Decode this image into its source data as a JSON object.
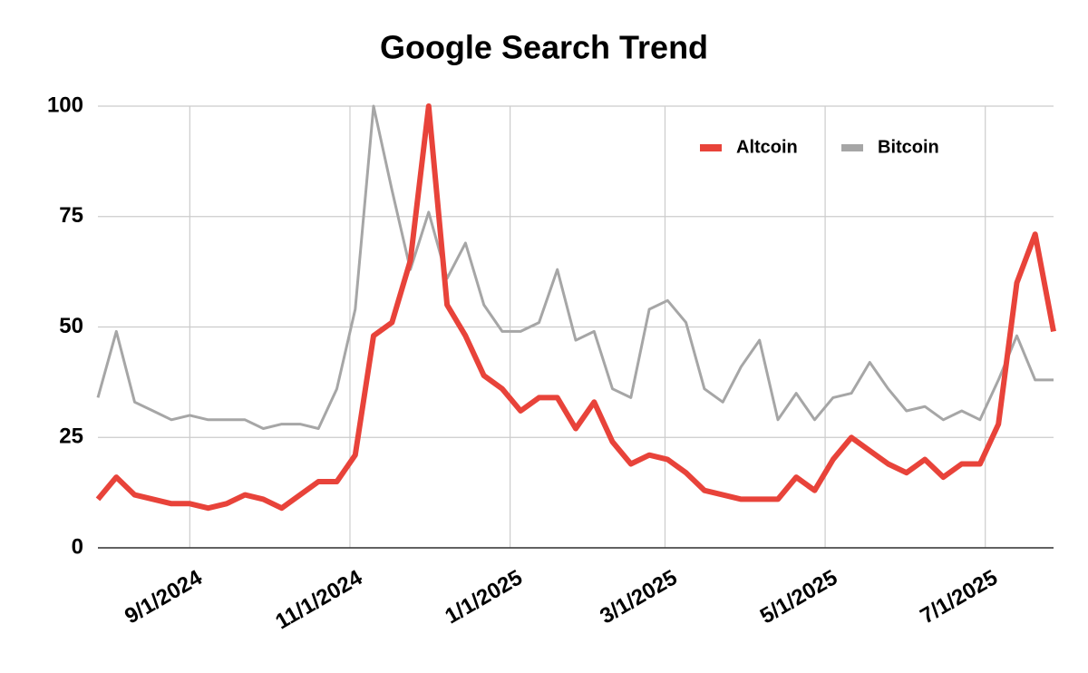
{
  "chart_data": {
    "type": "line",
    "title": "Google Search Trend",
    "x": [
      "2024-07-28",
      "2024-08-04",
      "2024-08-11",
      "2024-08-18",
      "2024-08-25",
      "2024-09-01",
      "2024-09-08",
      "2024-09-15",
      "2024-09-22",
      "2024-09-29",
      "2024-10-06",
      "2024-10-13",
      "2024-10-20",
      "2024-10-27",
      "2024-11-03",
      "2024-11-10",
      "2024-11-17",
      "2024-11-24",
      "2024-12-01",
      "2024-12-08",
      "2024-12-15",
      "2024-12-22",
      "2024-12-29",
      "2025-01-05",
      "2025-01-12",
      "2025-01-19",
      "2025-01-26",
      "2025-02-02",
      "2025-02-09",
      "2025-02-16",
      "2025-02-23",
      "2025-03-02",
      "2025-03-09",
      "2025-03-16",
      "2025-03-23",
      "2025-03-30",
      "2025-04-06",
      "2025-04-13",
      "2025-04-20",
      "2025-04-27",
      "2025-05-04",
      "2025-05-11",
      "2025-05-18",
      "2025-05-25",
      "2025-06-01",
      "2025-06-08",
      "2025-06-15",
      "2025-06-22",
      "2025-06-29",
      "2025-07-06",
      "2025-07-13",
      "2025-07-20",
      "2025-07-27"
    ],
    "series": [
      {
        "name": "Altcoin",
        "color": "#e8433a",
        "values": [
          11,
          16,
          12,
          11,
          10,
          10,
          9,
          10,
          12,
          11,
          9,
          12,
          15,
          15,
          21,
          48,
          51,
          65,
          100,
          55,
          48,
          39,
          36,
          31,
          34,
          34,
          27,
          33,
          24,
          19,
          21,
          20,
          17,
          13,
          12,
          11,
          11,
          11,
          16,
          13,
          20,
          25,
          22,
          19,
          17,
          20,
          16,
          19,
          19,
          28,
          60,
          71,
          49
        ]
      },
      {
        "name": "Bitcoin",
        "color": "#a6a6a6",
        "values": [
          34,
          49,
          33,
          31,
          29,
          30,
          29,
          29,
          29,
          27,
          28,
          28,
          27,
          36,
          54,
          100,
          81,
          63,
          76,
          61,
          69,
          55,
          49,
          49,
          51,
          63,
          47,
          49,
          36,
          34,
          54,
          56,
          51,
          36,
          33,
          41,
          47,
          29,
          35,
          29,
          34,
          35,
          42,
          36,
          31,
          32,
          29,
          31,
          29,
          38,
          48,
          38,
          38
        ]
      }
    ],
    "xlim": [
      "2024-07-28",
      "2025-07-27"
    ],
    "xticks": [
      {
        "value": "2024-09-01",
        "label": "9/1/2024"
      },
      {
        "value": "2024-11-01",
        "label": "11/1/2024"
      },
      {
        "value": "2025-01-01",
        "label": "1/1/2025"
      },
      {
        "value": "2025-03-01",
        "label": "3/1/2025"
      },
      {
        "value": "2025-05-01",
        "label": "5/1/2025"
      },
      {
        "value": "2025-07-01",
        "label": "7/1/2025"
      }
    ],
    "ylim": [
      0,
      100
    ],
    "yticks": [
      0,
      25,
      50,
      75,
      100
    ],
    "grid": true,
    "legend": "top-right"
  }
}
